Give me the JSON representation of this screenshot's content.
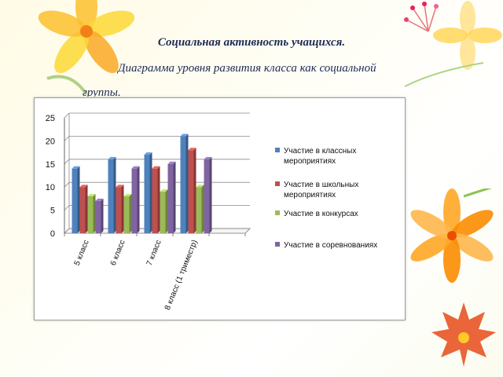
{
  "header": {
    "title": "Социальная активность учащихся.",
    "subtitle_line1": "Диаграмма уровня развития класса как социальной",
    "subtitle_line2": "группы."
  },
  "chart_data": {
    "type": "bar",
    "categories": [
      "5 класс",
      "6 класс",
      "7 класс",
      "8 класс (1 триместр)"
    ],
    "series": [
      {
        "name": "Участие в классных мероприятиях",
        "values": [
          14,
          16,
          17,
          21
        ],
        "color": "#4f81bd"
      },
      {
        "name": "Участие в школьных мероприятиях",
        "values": [
          10,
          10,
          14,
          18
        ],
        "color": "#c0504d"
      },
      {
        "name": "Участие в конкурсах",
        "values": [
          8,
          8,
          9,
          10
        ],
        "color": "#9bbb59"
      },
      {
        "name": "Участие в соревнованиях",
        "values": [
          7,
          14,
          15,
          16
        ],
        "color": "#8064a2"
      }
    ],
    "yticks": [
      "0",
      "5",
      "10",
      "15",
      "20",
      "25"
    ],
    "ylim": [
      0,
      25
    ],
    "grid": true,
    "legend_position": "right",
    "style": "3d-clustered-column"
  }
}
